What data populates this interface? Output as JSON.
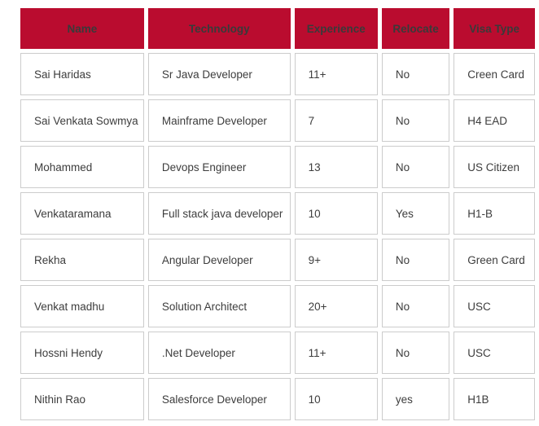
{
  "table": {
    "columns": [
      {
        "key": "name",
        "label": "Name"
      },
      {
        "key": "technology",
        "label": "Technology"
      },
      {
        "key": "experience",
        "label": "Experience"
      },
      {
        "key": "relocate",
        "label": "Relocate"
      },
      {
        "key": "visa",
        "label": "Visa Type"
      }
    ],
    "rows": [
      {
        "name": "Sai Haridas",
        "technology": "Sr Java Developer",
        "experience": "11+",
        "relocate": "No",
        "visa": "Creen Card"
      },
      {
        "name": "Sai Venkata Sowmya",
        "technology": "Mainframe Developer",
        "experience": "7",
        "relocate": "No",
        "visa": "H4 EAD"
      },
      {
        "name": "Mohammed",
        "technology": "Devops Engineer",
        "experience": "13",
        "relocate": "No",
        "visa": "US Citizen"
      },
      {
        "name": "Venkataramana",
        "technology": "Full stack java developer",
        "experience": "10",
        "relocate": "Yes",
        "visa": "H1-B"
      },
      {
        "name": "Rekha",
        "technology": "Angular Developer",
        "experience": "9+",
        "relocate": "No",
        "visa": "Green Card"
      },
      {
        "name": "Venkat madhu",
        "technology": "Solution Architect",
        "experience": "20+",
        "relocate": "No",
        "visa": "USC"
      },
      {
        "name": "Hossni Hendy",
        "technology": ".Net Developer",
        "experience": "11+",
        "relocate": "No",
        "visa": "USC"
      },
      {
        "name": "Nithin Rao",
        "technology": "Salesforce Developer",
        "experience": "10",
        "relocate": "yes",
        "visa": "H1B"
      }
    ],
    "colors": {
      "header_bg": "#ba0c2f",
      "header_text": "#3a3a3a",
      "cell_text": "#3d3d3d",
      "border": "#cccccc"
    }
  }
}
